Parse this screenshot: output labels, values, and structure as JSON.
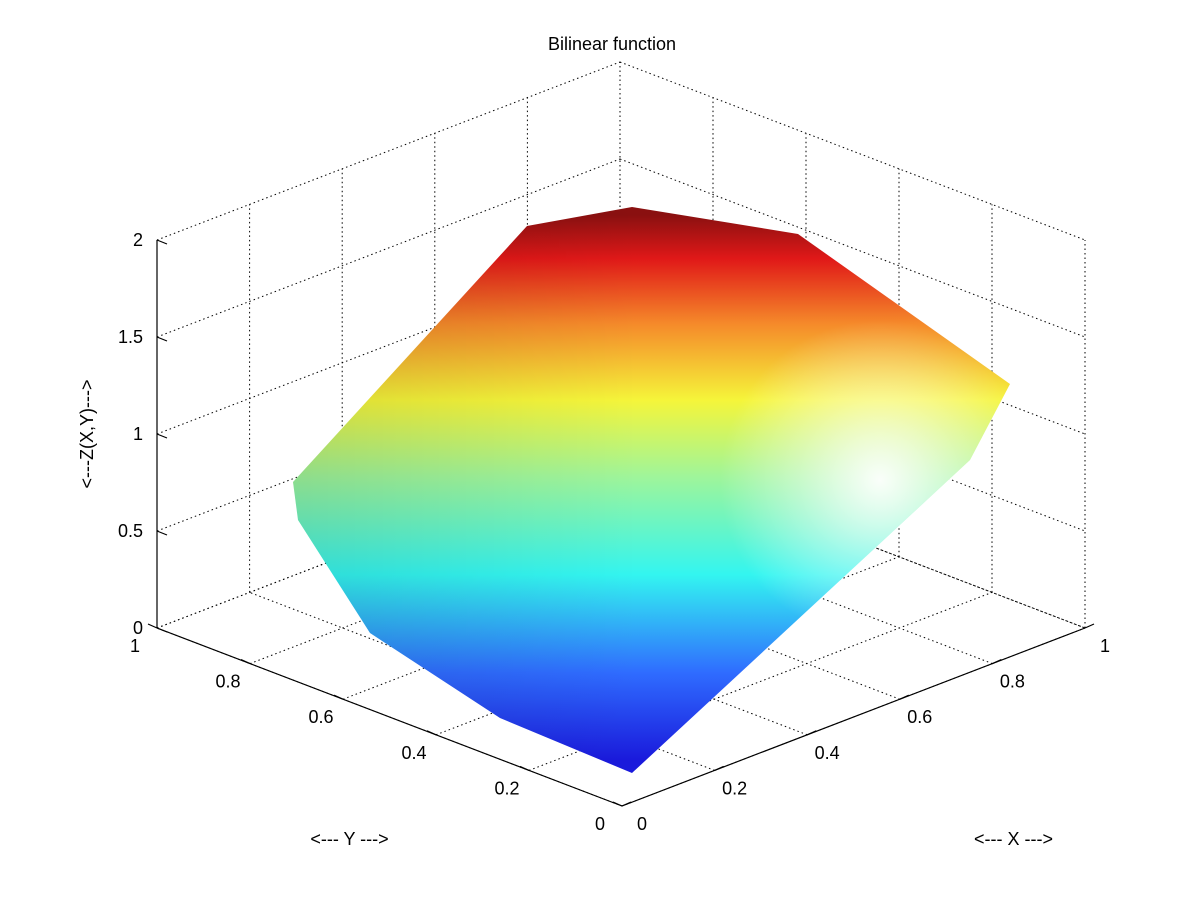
{
  "chart_data": {
    "type": "surface",
    "title": "Bilinear function",
    "xlabel": "<--- X --->",
    "ylabel": "<--- Y --->",
    "zlabel": "<---Z(X,Y)--->",
    "xlim": [
      0,
      1
    ],
    "ylim": [
      0,
      1
    ],
    "zlim": [
      0,
      2
    ],
    "x_ticks": [
      "0",
      "0.2",
      "0.4",
      "0.6",
      "0.8",
      "1"
    ],
    "y_ticks": [
      "0",
      "0.2",
      "0.4",
      "0.6",
      "0.8",
      "1"
    ],
    "z_ticks": [
      "0",
      "0.5",
      "1",
      "1.5",
      "2"
    ],
    "grid": true,
    "colormap": "jet",
    "corner_values": {
      "x0_y0": 0.0,
      "x1_y0": 1.0,
      "x0_y1": 1.0,
      "x1_y1": 2.0
    }
  }
}
